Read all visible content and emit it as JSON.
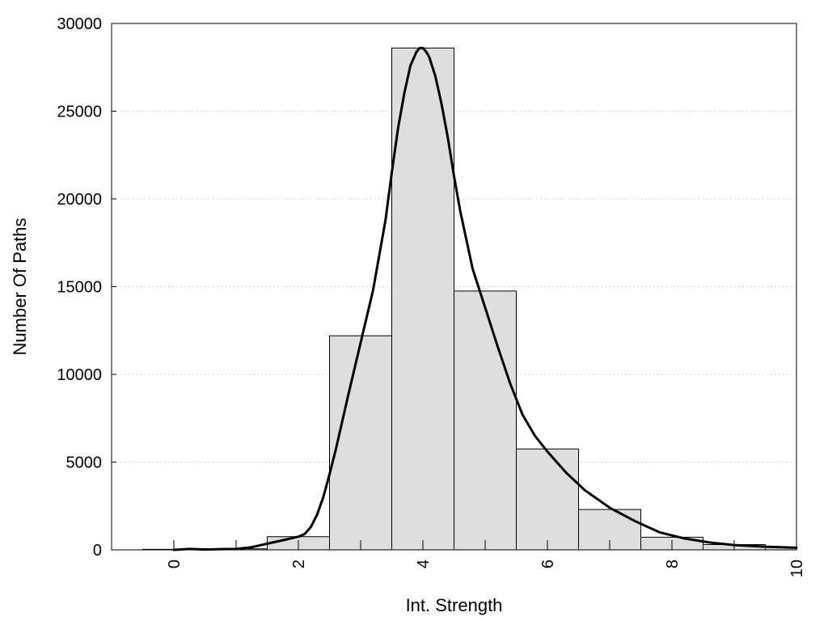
{
  "chart_data": {
    "type": "bar",
    "title": "",
    "xlabel": "Int. Strength",
    "ylabel": "Number Of Paths",
    "xlim": [
      -1,
      10
    ],
    "ylim": [
      0,
      30000
    ],
    "x_ticks": [
      0,
      2,
      4,
      6,
      8,
      10
    ],
    "y_ticks": [
      0,
      5000,
      10000,
      15000,
      20000,
      25000,
      30000
    ],
    "grid": "horizontal-dotted",
    "legend": "none",
    "bars": {
      "centers": [
        0,
        1,
        2,
        3,
        4,
        5,
        6,
        7,
        8,
        9,
        10
      ],
      "values": [
        30,
        60,
        750,
        12200,
        28600,
        14750,
        5750,
        2300,
        720,
        300,
        150
      ],
      "width": 1,
      "fill_color": "#dedede",
      "edge_color": "#000000"
    },
    "curve": {
      "color": "#000000",
      "x": [
        0,
        0.25,
        0.5,
        0.75,
        1,
        1.25,
        1.5,
        1.75,
        2,
        2.1,
        2.2,
        2.3,
        2.4,
        2.5,
        2.6,
        2.8,
        3,
        3.2,
        3.4,
        3.5,
        3.6,
        3.7,
        3.8,
        3.9,
        3.95,
        4,
        4.05,
        4.1,
        4.2,
        4.3,
        4.4,
        4.5,
        4.6,
        4.8,
        5,
        5.2,
        5.4,
        5.6,
        5.8,
        6,
        6.3,
        6.6,
        7,
        7.4,
        7.8,
        8.2,
        8.6,
        9,
        9.5,
        10
      ],
      "y": [
        0,
        50,
        20,
        40,
        50,
        150,
        350,
        550,
        750,
        900,
        1300,
        2000,
        3000,
        4300,
        5700,
        8800,
        11800,
        14800,
        18800,
        21500,
        24000,
        26000,
        27600,
        28400,
        28600,
        28600,
        28400,
        28100,
        27000,
        25400,
        23500,
        21300,
        19300,
        16000,
        13800,
        11600,
        9500,
        7700,
        6500,
        5600,
        4400,
        3400,
        2400,
        1650,
        1000,
        650,
        420,
        270,
        180,
        120
      ]
    }
  }
}
